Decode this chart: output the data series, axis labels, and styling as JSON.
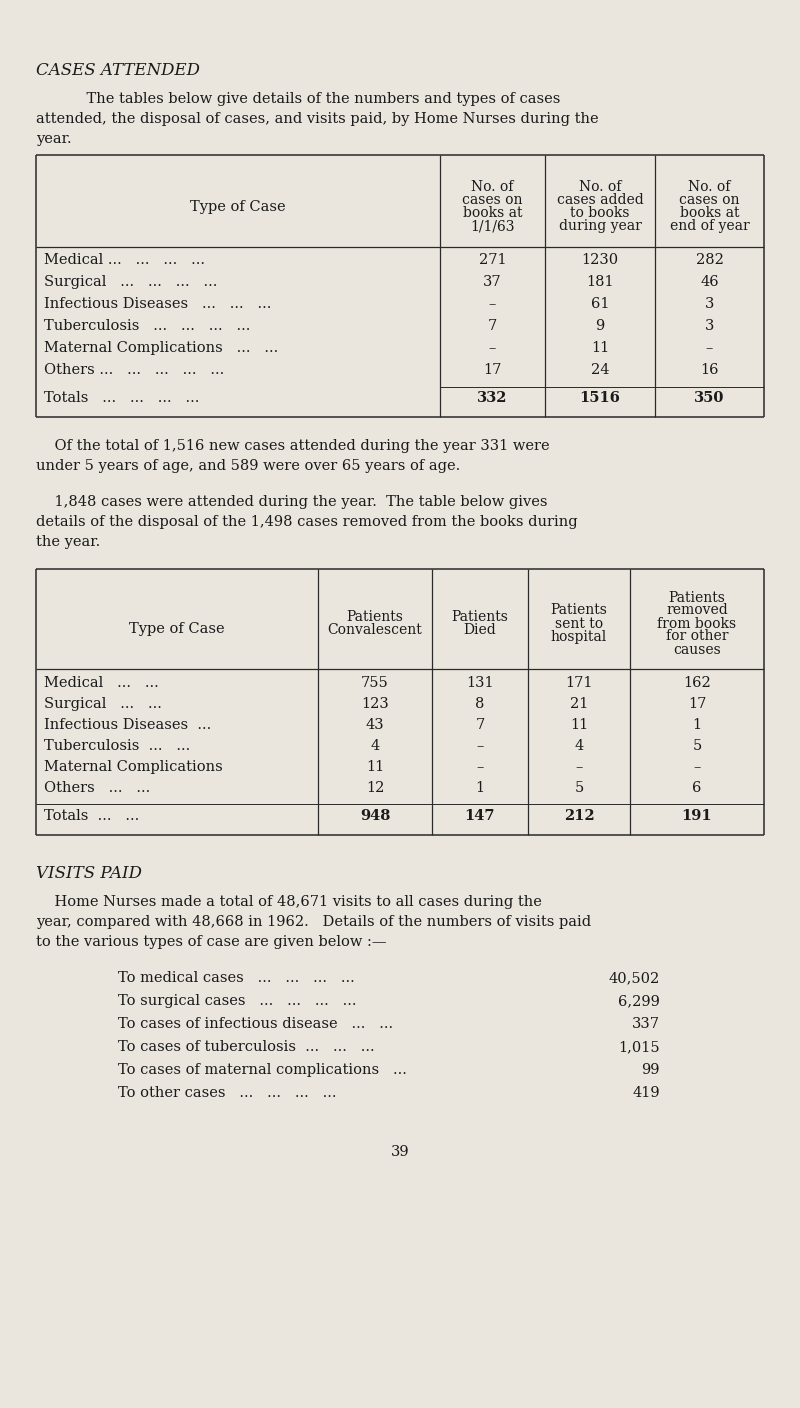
{
  "bg_color": "#eae6de",
  "text_color": "#1a1a1a",
  "page_title": "CASES ATTENDED",
  "table1_col_headers": [
    "Type of Case",
    "No. of\ncases on\nbooks at\n1/1/63",
    "No. of\ncases added\nto books\nduring year",
    "No. of\ncases on\nbooks at\nend of year"
  ],
  "table1_rows": [
    [
      "Medical ...   ...   ...   ...",
      "271",
      "1230",
      "282"
    ],
    [
      "Surgical   ...   ...   ...   ...",
      "37",
      "181",
      "46"
    ],
    [
      "Infectious Diseases   ...   ...   ...",
      "–",
      "61",
      "3"
    ],
    [
      "Tuberculosis   ...   ...   ...   ...",
      "7",
      "9",
      "3"
    ],
    [
      "Maternal Complications   ...   ...",
      "–",
      "11",
      "–"
    ],
    [
      "Others ...   ...   ...   ...   ...",
      "17",
      "24",
      "16"
    ]
  ],
  "table1_totals": [
    "Totals   ...   ...   ...   ...",
    "332",
    "1516",
    "350"
  ],
  "between1_lines": [
    "    Of the total of 1,516 new cases attended during the year 331 were",
    "under 5 years of age, and 589 were over 65 years of age."
  ],
  "between2_lines": [
    "    1,848 cases were attended during the year.  The table below gives",
    "details of the disposal of the 1,498 cases removed from the books during",
    "the year."
  ],
  "table2_col_headers": [
    "Type of Case",
    "Patients\nConvalescent",
    "Patients\nDied",
    "Patients\nsent to\nhospital",
    "Patients\nremoved\nfrom books\nfor other\ncauses"
  ],
  "table2_rows": [
    [
      "Medical   ...   ...",
      "755",
      "131",
      "171",
      "162"
    ],
    [
      "Surgical   ...   ...",
      "123",
      "8",
      "21",
      "17"
    ],
    [
      "Infectious Diseases  ...",
      "43",
      "7",
      "11",
      "1"
    ],
    [
      "Tuberculosis  ...   ...",
      "4",
      "–",
      "4",
      "5"
    ],
    [
      "Maternal Complications",
      "11",
      "–",
      "–",
      "–"
    ],
    [
      "Others   ...   ...",
      "12",
      "1",
      "5",
      "6"
    ]
  ],
  "table2_totals": [
    "Totals  ...   ...",
    "948",
    "147",
    "212",
    "191"
  ],
  "visits_title": "VISITS PAID",
  "visits_intro_lines": [
    "    Home Nurses made a total of 48,671 visits to all cases during the",
    "year, compared with 48,668 in 1962.   Details of the numbers of visits paid",
    "to the various types of case are given below :—"
  ],
  "visits_items": [
    [
      "To medical cases   ...   ...   ...   ...",
      "40,502"
    ],
    [
      "To surgical cases   ...   ...   ...   ...",
      "6,299"
    ],
    [
      "To cases of infectious disease   ...   ...",
      "337"
    ],
    [
      "To cases of tuberculosis  ...   ...   ...",
      "1,015"
    ],
    [
      "To cases of maternal complications   ...",
      "99"
    ],
    [
      "To other cases   ...   ...   ...   ...",
      "419"
    ]
  ],
  "page_number": "39"
}
